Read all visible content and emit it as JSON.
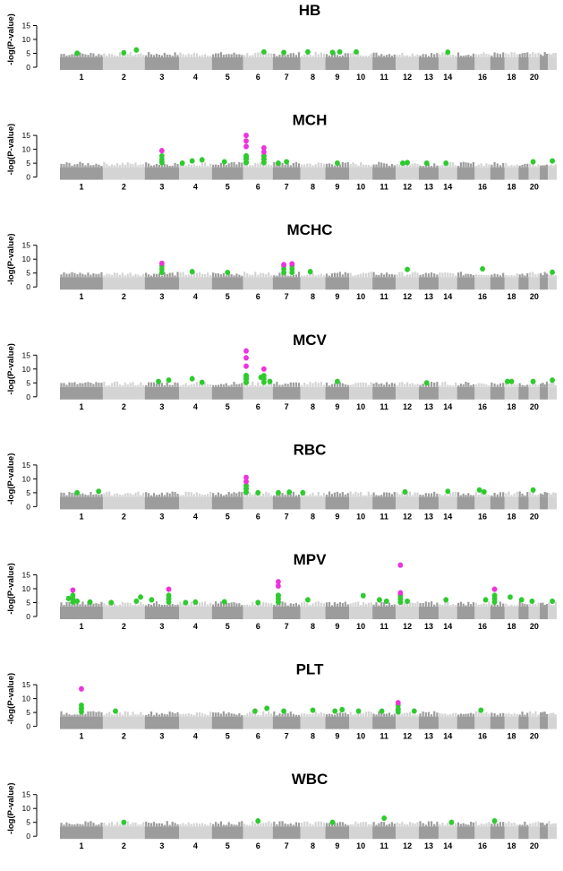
{
  "chart_data": {
    "type": "scatter",
    "ylabel": "-log(P-value)",
    "y_ticks": [
      "0",
      "5",
      "10",
      "15"
    ],
    "ylim": [
      0,
      20
    ],
    "chromosome_tick_labels": [
      "1",
      "2",
      "3",
      "4",
      "5",
      "6",
      "7",
      "8",
      "9",
      "10",
      "11",
      "12",
      "13",
      "14",
      "16",
      "18",
      "20"
    ],
    "chromosomes": [
      "1",
      "2",
      "3",
      "4",
      "5",
      "6",
      "7",
      "8",
      "9",
      "10",
      "11",
      "12",
      "13",
      "14",
      "15",
      "16",
      "17",
      "18",
      "19",
      "20",
      "21",
      "22"
    ],
    "chromosome_widths": [
      248,
      242,
      198,
      190,
      181,
      171,
      159,
      145,
      138,
      134,
      135,
      133,
      114,
      107,
      102,
      90,
      83,
      80,
      59,
      64,
      47,
      51
    ],
    "colors": {
      "band_dark": "#9c9c9c",
      "band_light": "#d4d4d4",
      "genome_wide_hit": "#2ecb2e",
      "strongest_hit": "#ee33dd"
    },
    "panels": [
      {
        "title": "HB",
        "green": [
          [
            1,
            0.4,
            5
          ],
          [
            2,
            0.5,
            5.2
          ],
          [
            2,
            0.8,
            6.2
          ],
          [
            6,
            0.7,
            5.5
          ],
          [
            7,
            0.4,
            5.3
          ],
          [
            8,
            0.3,
            5.5
          ],
          [
            9,
            0.3,
            5.3
          ],
          [
            9,
            0.6,
            5.5
          ],
          [
            10,
            0.3,
            5.5
          ],
          [
            14,
            0.5,
            5.4
          ]
        ],
        "magenta": []
      },
      {
        "title": "MCH",
        "green": [
          [
            3,
            0.5,
            5.5
          ],
          [
            4,
            0.1,
            5
          ],
          [
            4,
            0.4,
            5.8
          ],
          [
            4,
            0.7,
            6.2
          ],
          [
            5,
            0.4,
            5.5
          ],
          [
            6,
            0.1,
            7
          ],
          [
            6,
            0.7,
            6.5
          ],
          [
            7,
            0.2,
            5
          ],
          [
            7,
            0.5,
            5.5
          ],
          [
            9,
            0.5,
            5
          ],
          [
            12,
            0.3,
            5
          ],
          [
            12,
            0.5,
            5.2
          ],
          [
            13,
            0.4,
            5
          ],
          [
            14,
            0.4,
            5
          ],
          [
            20,
            0.4,
            5.5
          ],
          [
            22,
            0.5,
            5.8
          ]
        ],
        "magenta": [
          [
            3,
            0.5,
            9.5
          ],
          [
            6,
            0.1,
            11
          ],
          [
            6,
            0.1,
            13
          ],
          [
            6,
            0.1,
            15
          ],
          [
            6,
            0.7,
            9
          ],
          [
            6,
            0.7,
            10.5
          ]
        ]
      },
      {
        "title": "MCHC",
        "green": [
          [
            4,
            0.4,
            5.5
          ],
          [
            5,
            0.5,
            5.2
          ],
          [
            8,
            0.4,
            5.5
          ],
          [
            12,
            0.5,
            6.3
          ],
          [
            16,
            0.5,
            6.5
          ],
          [
            22,
            0.5,
            5.3
          ]
        ],
        "magenta": [
          [
            3,
            0.5,
            8.5
          ],
          [
            7,
            0.4,
            8
          ],
          [
            7,
            0.7,
            8.3
          ]
        ]
      },
      {
        "title": "MCV",
        "green": [
          [
            3,
            0.4,
            5.5
          ],
          [
            3,
            0.7,
            6
          ],
          [
            4,
            0.4,
            6.5
          ],
          [
            4,
            0.7,
            5.2
          ],
          [
            6,
            0.1,
            7
          ],
          [
            6,
            0.6,
            7
          ],
          [
            6,
            0.9,
            5.5
          ],
          [
            9,
            0.5,
            5.5
          ],
          [
            13,
            0.4,
            5
          ],
          [
            18,
            0.2,
            5.5
          ],
          [
            18,
            0.5,
            5.5
          ],
          [
            20,
            0.4,
            5.5
          ],
          [
            22,
            0.5,
            6
          ]
        ],
        "magenta": [
          [
            6,
            0.1,
            11
          ],
          [
            6,
            0.1,
            14
          ],
          [
            6,
            0.1,
            16.5
          ],
          [
            6,
            0.7,
            10
          ]
        ]
      },
      {
        "title": "RBC",
        "green": [
          [
            1,
            0.4,
            5
          ],
          [
            1,
            0.9,
            5.5
          ],
          [
            6,
            0.1,
            6.5
          ],
          [
            6,
            0.5,
            5
          ],
          [
            7,
            0.2,
            5
          ],
          [
            7,
            0.6,
            5.2
          ],
          [
            8,
            0.1,
            5
          ],
          [
            12,
            0.4,
            5.3
          ],
          [
            14,
            0.5,
            5.5
          ],
          [
            16,
            0.3,
            6
          ],
          [
            16,
            0.6,
            5.3
          ],
          [
            20,
            0.4,
            6
          ]
        ],
        "magenta": [
          [
            6,
            0.1,
            9
          ],
          [
            6,
            0.1,
            10.5
          ]
        ]
      },
      {
        "title": "MPV",
        "green": [
          [
            1,
            0.2,
            6.5
          ],
          [
            1,
            0.4,
            5.5
          ],
          [
            1,
            0.7,
            5.2
          ],
          [
            2,
            0.2,
            5
          ],
          [
            2,
            0.8,
            5.5
          ],
          [
            2,
            0.9,
            7
          ],
          [
            3,
            0.2,
            6
          ],
          [
            3,
            0.7,
            6.5
          ],
          [
            4,
            0.2,
            5
          ],
          [
            4,
            0.5,
            5.2
          ],
          [
            5,
            0.4,
            5.3
          ],
          [
            6,
            0.5,
            5
          ],
          [
            7,
            0.2,
            7.5
          ],
          [
            8,
            0.3,
            6
          ],
          [
            10,
            0.6,
            7.5
          ],
          [
            11,
            0.3,
            6
          ],
          [
            11,
            0.6,
            5.5
          ],
          [
            12,
            0.2,
            6.5
          ],
          [
            12,
            0.5,
            5.5
          ],
          [
            14,
            0.4,
            6
          ],
          [
            16,
            0.7,
            6
          ],
          [
            17,
            0.3,
            6.5
          ],
          [
            18,
            0.4,
            7
          ],
          [
            19,
            0.3,
            6
          ],
          [
            20,
            0.3,
            5.5
          ],
          [
            22,
            0.5,
            5.5
          ]
        ],
        "magenta": [
          [
            1,
            0.3,
            9.5
          ],
          [
            3,
            0.7,
            9.8
          ],
          [
            7,
            0.2,
            11
          ],
          [
            7,
            0.2,
            12.5
          ],
          [
            12,
            0.2,
            18.5
          ],
          [
            12,
            0.2,
            8.5
          ],
          [
            17,
            0.3,
            9.8
          ]
        ]
      },
      {
        "title": "PLT",
        "green": [
          [
            1,
            0.5,
            6.5
          ],
          [
            2,
            0.3,
            5.5
          ],
          [
            6,
            0.4,
            5.5
          ],
          [
            6,
            0.8,
            6.5
          ],
          [
            7,
            0.4,
            5.5
          ],
          [
            8,
            0.5,
            5.8
          ],
          [
            9,
            0.4,
            5.5
          ],
          [
            9,
            0.7,
            6
          ],
          [
            10,
            0.4,
            5.5
          ],
          [
            11,
            0.4,
            5.5
          ],
          [
            12,
            0.1,
            6
          ],
          [
            12,
            0.8,
            5.5
          ],
          [
            16,
            0.4,
            5.8
          ]
        ],
        "magenta": [
          [
            1,
            0.5,
            13.5
          ],
          [
            12,
            0.1,
            8.5
          ]
        ]
      },
      {
        "title": "WBC",
        "green": [
          [
            2,
            0.5,
            5
          ],
          [
            6,
            0.5,
            5.5
          ],
          [
            9,
            0.3,
            5
          ],
          [
            11,
            0.5,
            6.5
          ],
          [
            14,
            0.7,
            5
          ],
          [
            17,
            0.3,
            5.5
          ]
        ],
        "magenta": []
      }
    ]
  }
}
